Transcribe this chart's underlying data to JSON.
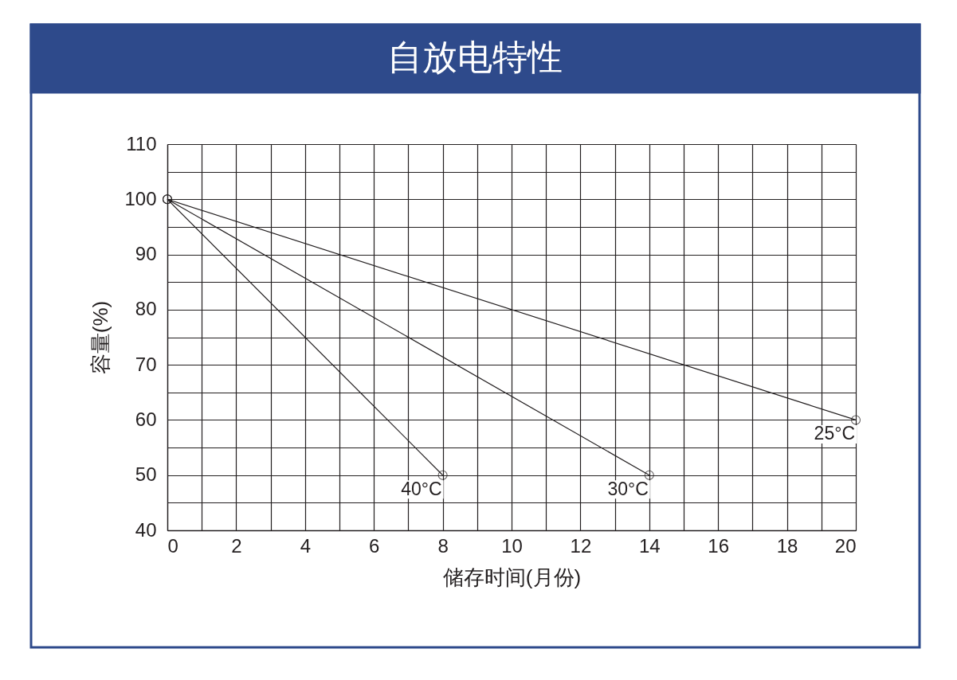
{
  "chart_data": {
    "type": "line",
    "title": "自放电特性",
    "xlabel": "储存时间(月份)",
    "ylabel": "容量(%)",
    "series": [
      {
        "name": "40°C",
        "color": "#231f20",
        "x": [
          0,
          8
        ],
        "values": [
          100,
          50
        ]
      },
      {
        "name": "30°C",
        "color": "#231f20",
        "x": [
          0,
          14
        ],
        "values": [
          100,
          50
        ]
      },
      {
        "name": "25°C",
        "color": "#231f20",
        "x": [
          0,
          20
        ],
        "values": [
          100,
          60
        ]
      }
    ],
    "xlim": [
      0,
      20
    ],
    "ylim": [
      40,
      110
    ],
    "xticks": [
      0,
      {
        "value": 1,
        "label": null
      },
      2,
      {
        "value": 3,
        "label": null
      },
      4,
      {
        "value": 5,
        "label": null
      },
      6,
      {
        "value": 7,
        "label": null
      },
      8,
      {
        "value": 9,
        "label": null
      },
      10,
      {
        "value": 11,
        "label": null
      },
      12,
      {
        "value": 13,
        "label": null
      },
      14,
      {
        "value": 15,
        "label": null
      },
      16,
      {
        "value": 17,
        "label": null
      },
      18,
      {
        "value": 19,
        "label": null
      },
      20
    ],
    "yticks": [
      40,
      {
        "value": 45,
        "label": null
      },
      50,
      {
        "value": 55,
        "label": null
      },
      60,
      {
        "value": 65,
        "label": null
      },
      70,
      {
        "value": 75,
        "label": null
      },
      80,
      {
        "value": 85,
        "label": null
      },
      90,
      {
        "value": 95,
        "label": null
      },
      100,
      {
        "value": 105,
        "label": null
      },
      110
    ],
    "grid": true,
    "marker": "circle",
    "line_style": "solid"
  }
}
